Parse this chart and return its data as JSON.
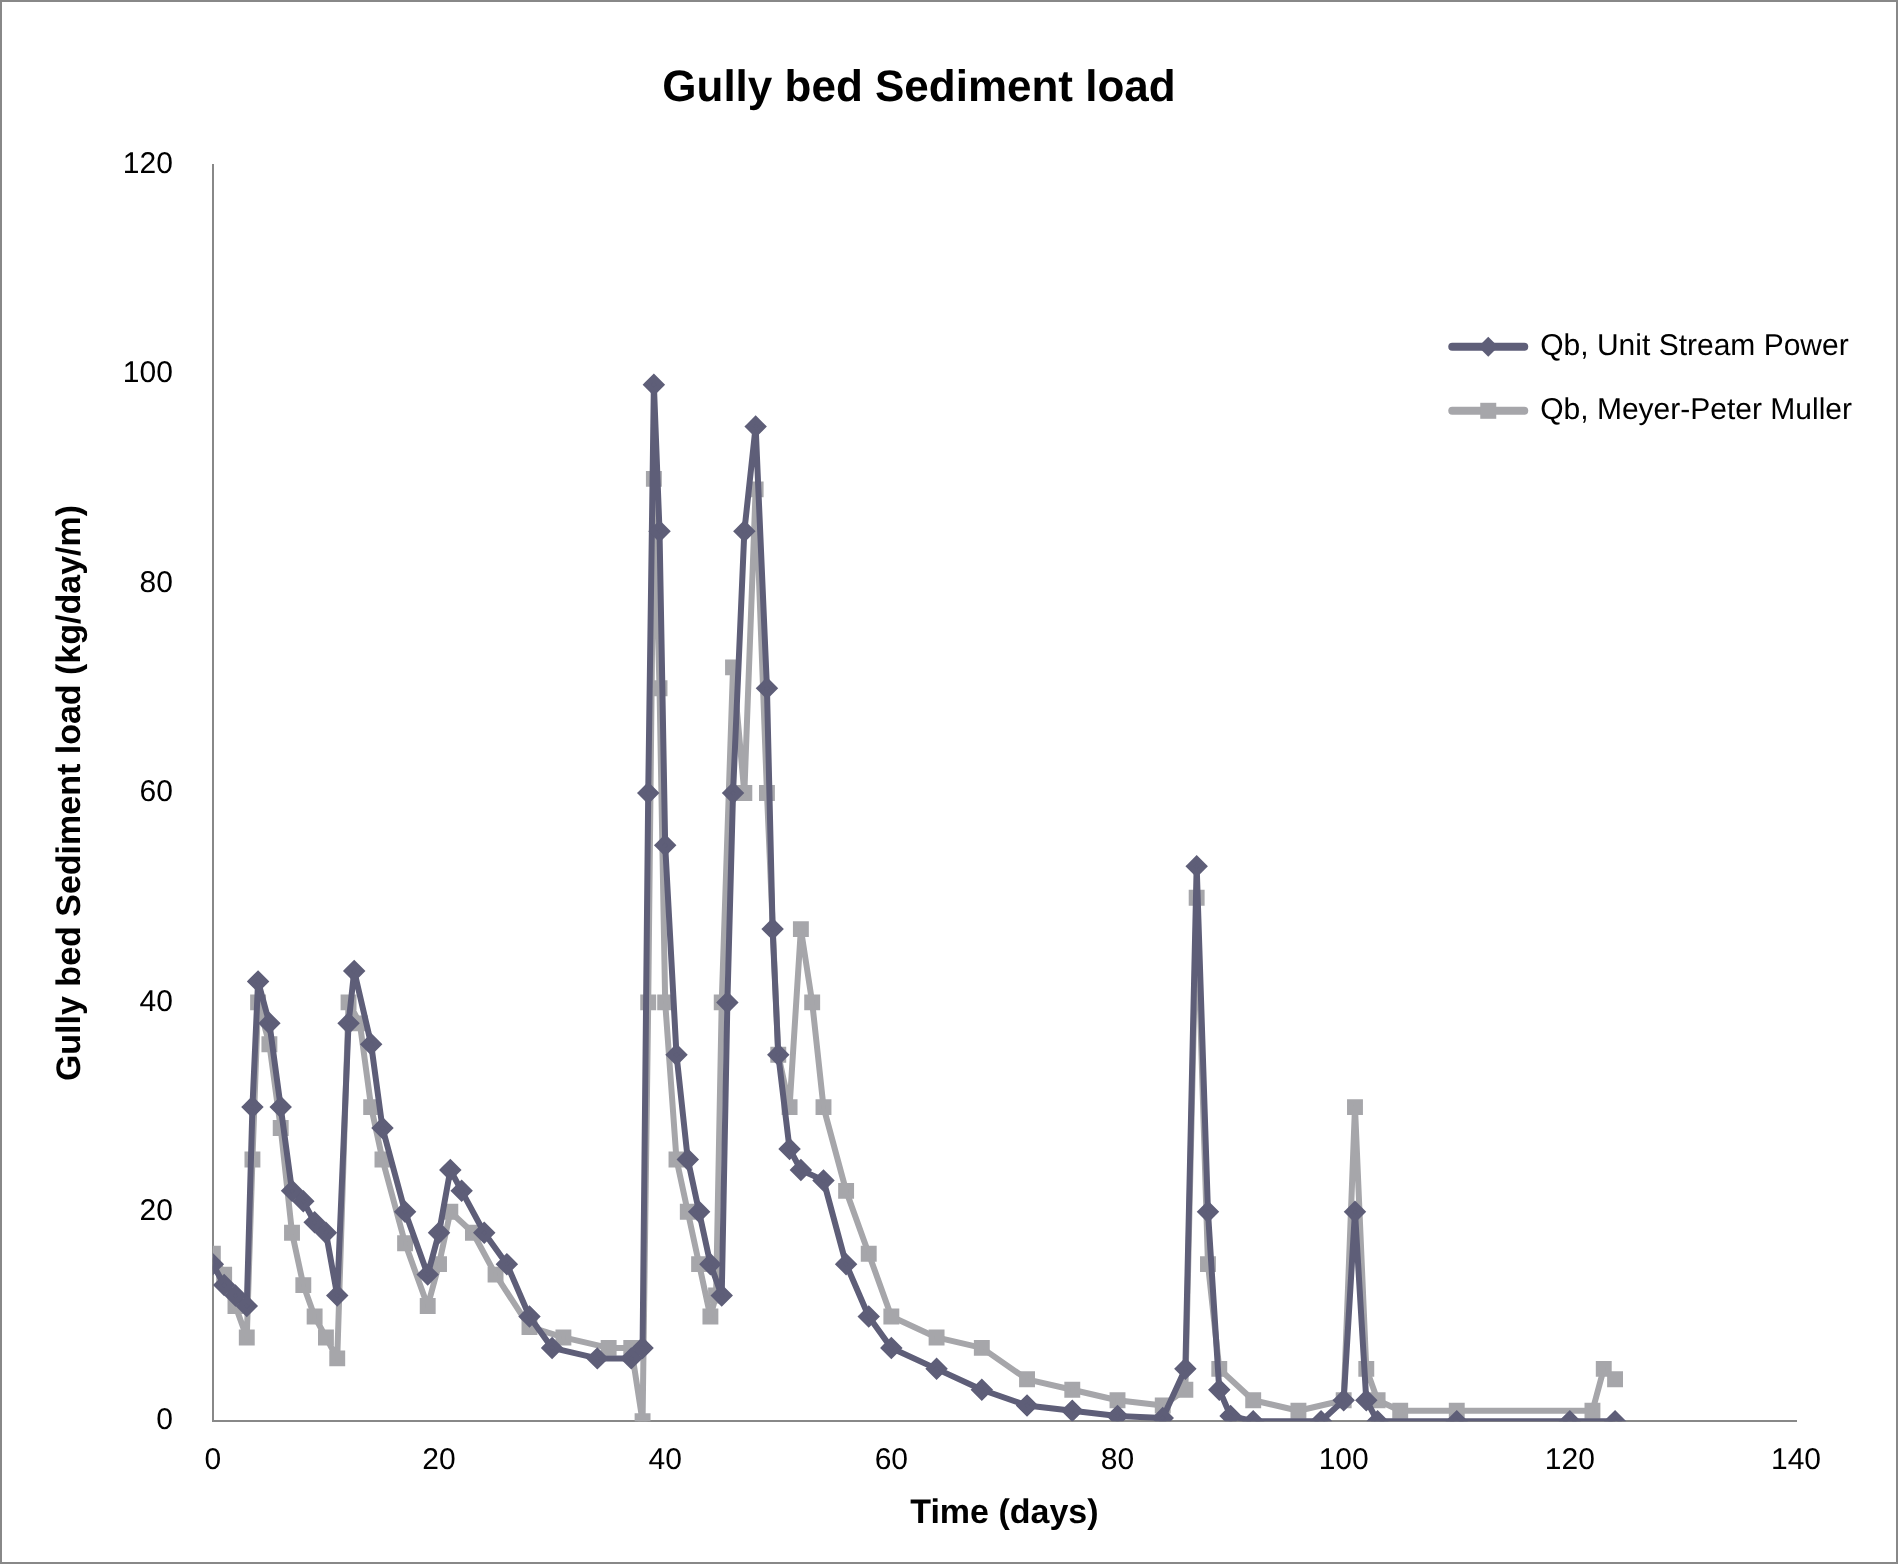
{
  "chart_data": {
    "type": "line",
    "title": "Gully bed Sediment load",
    "xlabel": "Time (days)",
    "ylabel": "Gully bed Sediment load (kg/day/m)",
    "xlim": [
      0,
      140
    ],
    "xticks": [
      0,
      20,
      40,
      60,
      80,
      100,
      120,
      140
    ],
    "ylim": [
      0,
      120
    ],
    "yticks": [
      0,
      20,
      40,
      60,
      80,
      100,
      120
    ],
    "grid": false,
    "legend": "top right",
    "line_style": "solid",
    "series": [
      {
        "name": "Qb, Unit Stream Power",
        "color": "#5e5e78",
        "marker": "diamond",
        "x": [
          0,
          1,
          2,
          3,
          3.5,
          4,
          5,
          6,
          7,
          8,
          9,
          10,
          11,
          12,
          12.5,
          14,
          15,
          17,
          19,
          20,
          21,
          22,
          24,
          26,
          28,
          30,
          34,
          37,
          38,
          38.5,
          39,
          39.5,
          40,
          41,
          42,
          43,
          44,
          45,
          45.5,
          46,
          47,
          48,
          49,
          49.5,
          50,
          51,
          52,
          54,
          56,
          58,
          60,
          64,
          68,
          72,
          76,
          80,
          84,
          86,
          87,
          88,
          89,
          90,
          92,
          98,
          100,
          101,
          102,
          103,
          110,
          120,
          124
        ],
        "values": [
          15,
          13,
          12,
          11,
          30,
          42,
          38,
          30,
          22,
          21,
          19,
          18,
          12,
          38,
          43,
          36,
          28,
          20,
          14,
          18,
          24,
          22,
          18,
          15,
          10,
          7,
          6,
          6,
          7,
          60,
          99,
          85,
          55,
          35,
          25,
          20,
          15,
          12,
          40,
          60,
          85,
          95,
          70,
          47,
          35,
          26,
          24,
          23,
          15,
          10,
          7,
          5,
          3,
          1.5,
          1,
          0.5,
          0.3,
          5,
          53,
          20,
          3,
          0.5,
          0,
          0,
          2,
          20,
          2,
          0,
          0,
          0,
          0
        ]
      },
      {
        "name": "Qb, Meyer-Peter Muller",
        "color": "#a6a6aa",
        "marker": "square",
        "x": [
          0,
          1,
          2,
          3,
          3.5,
          4,
          5,
          6,
          7,
          8,
          9,
          10,
          11,
          12,
          13,
          14,
          15,
          17,
          19,
          20,
          21,
          23,
          25,
          28,
          31,
          35,
          37,
          38,
          38.5,
          39,
          39.5,
          40,
          41,
          42,
          43,
          44,
          44.5,
          45,
          46,
          47,
          48,
          49,
          50,
          51,
          52,
          53,
          54,
          56,
          58,
          60,
          64,
          68,
          72,
          76,
          80,
          84,
          86,
          87,
          88,
          89,
          92,
          96,
          100,
          101,
          102,
          103,
          105,
          110,
          122,
          123,
          124
        ],
        "values": [
          16,
          14,
          11,
          8,
          25,
          40,
          36,
          28,
          18,
          13,
          10,
          8,
          6,
          40,
          38,
          30,
          25,
          17,
          11,
          15,
          20,
          18,
          14,
          9,
          8,
          7,
          7,
          0,
          40,
          90,
          70,
          40,
          25,
          20,
          15,
          10,
          12,
          40,
          72,
          60,
          89,
          60,
          35,
          30,
          47,
          40,
          30,
          22,
          16,
          10,
          8,
          7,
          4,
          3,
          2,
          1.5,
          3,
          50,
          15,
          5,
          2,
          1,
          2,
          30,
          5,
          2,
          1,
          1,
          1,
          5,
          4
        ]
      }
    ]
  }
}
